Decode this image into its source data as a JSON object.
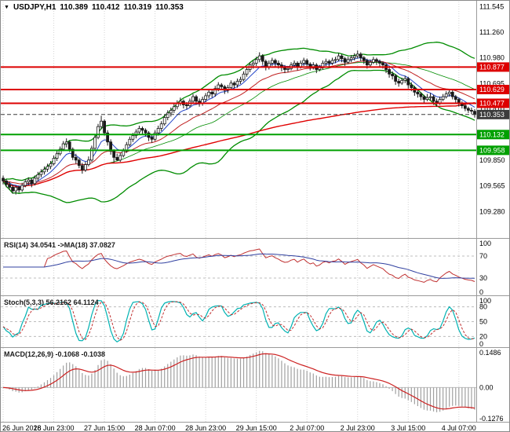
{
  "header": {
    "symbol_label": "USDJPY,H1",
    "open": "110.389",
    "high": "110.412",
    "low": "110.319",
    "close": "110.353"
  },
  "colors": {
    "background": "#ffffff",
    "border": "#9a9a9a",
    "grid": "#d4d4d4",
    "text": "#000000",
    "candle_up_fill": "#ffffff",
    "candle_down_fill": "#1a1a1a",
    "candle_outline": "#1a1a1a",
    "bollinger": "#008c00",
    "sma_slow": "#e00000",
    "ema_fast": "#2244c8",
    "ema_mid": "#c02020",
    "resistance": "#dd0000",
    "support": "#00a000",
    "current_price_box": "#3c3c3c",
    "rsi_line": "#c03030",
    "rsi_ma": "#3040a0",
    "stoch_k": "#00b2b2",
    "stoch_d": "#c03030",
    "macd_hist": "#a0a0a0",
    "macd_signal": "#cc2020",
    "level_dashed": "#bcbcbc"
  },
  "chart_data": {
    "type": "candlestick",
    "symbol": "USDJPY",
    "timeframe": "H1",
    "title": "USDJPY,H1 110.389 110.412 110.319 110.353",
    "price_axis": {
      "min": 108.99,
      "max": 111.6,
      "ticks": [
        "111.545",
        "111.260",
        "110.980",
        "110.695",
        "110.410",
        "110.125",
        "109.850",
        "109.565",
        "109.280"
      ]
    },
    "time_labels": [
      "26 Jun 2018",
      "26 Jun 23:00",
      "27 Jun 15:00",
      "28 Jun 07:00",
      "28 Jun 23:00",
      "29 Jun 15:00",
      "2 Jul 07:00",
      "2 Jul 23:00",
      "3 Jul 15:00",
      "4 Jul 07:00"
    ],
    "bars_per_grid": 16,
    "levels": [
      {
        "price": 110.877,
        "kind": "resistance"
      },
      {
        "price": 110.629,
        "kind": "resistance"
      },
      {
        "price": 110.477,
        "kind": "resistance"
      },
      {
        "price": 110.132,
        "kind": "support"
      },
      {
        "price": 109.958,
        "kind": "support"
      }
    ],
    "current_price": 110.353,
    "overlays": {
      "bollinger_period": 34,
      "bollinger_dev": 2,
      "ema_fast": 8,
      "ema_mid": 21,
      "sma_slow": 144
    },
    "candles": [
      [
        109.65,
        109.68,
        109.58,
        109.62
      ],
      [
        109.62,
        109.64,
        109.55,
        109.58
      ],
      [
        109.58,
        109.61,
        109.52,
        109.55
      ],
      [
        109.55,
        109.58,
        109.48,
        109.51
      ],
      [
        109.51,
        109.57,
        109.47,
        109.55
      ],
      [
        109.55,
        109.57,
        109.49,
        109.52
      ],
      [
        109.52,
        109.6,
        109.5,
        109.57
      ],
      [
        109.57,
        109.64,
        109.55,
        109.61
      ],
      [
        109.61,
        109.66,
        109.57,
        109.63
      ],
      [
        109.63,
        109.65,
        109.55,
        109.59
      ],
      [
        109.59,
        109.68,
        109.57,
        109.65
      ],
      [
        109.65,
        109.72,
        109.62,
        109.69
      ],
      [
        109.69,
        109.75,
        109.66,
        109.72
      ],
      [
        109.72,
        109.78,
        109.69,
        109.75
      ],
      [
        109.75,
        109.81,
        109.72,
        109.78
      ],
      [
        109.78,
        109.84,
        109.75,
        109.81
      ],
      [
        109.81,
        109.9,
        109.79,
        109.87
      ],
      [
        109.87,
        109.95,
        109.84,
        109.92
      ],
      [
        109.92,
        110.0,
        109.9,
        109.97
      ],
      [
        109.97,
        110.06,
        109.95,
        110.03
      ],
      [
        110.03,
        110.09,
        109.99,
        110.05
      ],
      [
        110.05,
        110.07,
        109.94,
        109.97
      ],
      [
        109.97,
        109.99,
        109.85,
        109.88
      ],
      [
        109.88,
        109.92,
        109.81,
        109.85
      ],
      [
        109.85,
        109.87,
        109.76,
        109.79
      ],
      [
        109.79,
        109.82,
        109.7,
        109.74
      ],
      [
        109.74,
        109.83,
        109.72,
        109.8
      ],
      [
        109.8,
        109.89,
        109.78,
        109.85
      ],
      [
        109.85,
        110.01,
        109.83,
        109.98
      ],
      [
        109.98,
        110.13,
        109.96,
        110.1
      ],
      [
        110.1,
        110.25,
        110.08,
        110.22
      ],
      [
        110.22,
        110.34,
        110.19,
        110.28
      ],
      [
        110.28,
        110.3,
        110.12,
        110.15
      ],
      [
        110.15,
        110.18,
        110.01,
        110.05
      ],
      [
        110.05,
        110.08,
        109.91,
        109.95
      ],
      [
        109.95,
        109.97,
        109.82,
        109.88
      ],
      [
        109.88,
        109.92,
        109.84,
        109.85
      ],
      [
        109.85,
        109.93,
        109.83,
        109.9
      ],
      [
        109.9,
        109.98,
        109.88,
        109.95
      ],
      [
        109.95,
        110.05,
        109.93,
        110.02
      ],
      [
        110.02,
        110.11,
        110.0,
        110.08
      ],
      [
        110.08,
        110.15,
        110.05,
        110.12
      ],
      [
        110.12,
        110.19,
        110.09,
        110.16
      ],
      [
        110.16,
        110.23,
        110.13,
        110.2
      ],
      [
        110.2,
        110.22,
        110.13,
        110.18
      ],
      [
        110.18,
        110.2,
        110.11,
        110.15
      ],
      [
        110.15,
        110.17,
        110.06,
        110.1
      ],
      [
        110.1,
        110.13,
        110.04,
        110.08
      ],
      [
        110.08,
        110.18,
        110.06,
        110.15
      ],
      [
        110.15,
        110.23,
        110.12,
        110.2
      ],
      [
        110.2,
        110.28,
        110.17,
        110.25
      ],
      [
        110.25,
        110.35,
        110.23,
        110.32
      ],
      [
        110.32,
        110.4,
        110.29,
        110.37
      ],
      [
        110.37,
        110.43,
        110.33,
        110.4
      ],
      [
        110.4,
        110.47,
        110.37,
        110.44
      ],
      [
        110.44,
        110.51,
        110.41,
        110.48
      ],
      [
        110.48,
        110.54,
        110.45,
        110.5
      ],
      [
        110.5,
        110.52,
        110.42,
        110.46
      ],
      [
        110.46,
        110.49,
        110.41,
        110.45
      ],
      [
        110.45,
        110.53,
        110.43,
        110.5
      ],
      [
        110.5,
        110.58,
        110.47,
        110.55
      ],
      [
        110.55,
        110.57,
        110.46,
        110.5
      ],
      [
        110.5,
        110.53,
        110.44,
        110.48
      ],
      [
        110.48,
        110.55,
        110.45,
        110.52
      ],
      [
        110.52,
        110.59,
        110.49,
        110.56
      ],
      [
        110.56,
        110.63,
        110.53,
        110.6
      ],
      [
        110.6,
        110.62,
        110.54,
        110.58
      ],
      [
        110.58,
        110.67,
        110.55,
        110.64
      ],
      [
        110.64,
        110.71,
        110.61,
        110.68
      ],
      [
        110.68,
        110.7,
        110.62,
        110.66
      ],
      [
        110.66,
        110.68,
        110.58,
        110.62
      ],
      [
        110.62,
        110.68,
        110.59,
        110.65
      ],
      [
        110.65,
        110.73,
        110.62,
        110.7
      ],
      [
        110.7,
        110.72,
        110.64,
        110.68
      ],
      [
        110.68,
        110.75,
        110.65,
        110.72
      ],
      [
        110.72,
        110.77,
        110.69,
        110.74
      ],
      [
        110.74,
        110.83,
        110.72,
        110.8
      ],
      [
        110.8,
        110.88,
        110.77,
        110.85
      ],
      [
        110.85,
        110.93,
        110.82,
        110.9
      ],
      [
        110.9,
        110.95,
        110.86,
        110.92
      ],
      [
        110.92,
        110.99,
        110.89,
        110.96
      ],
      [
        110.96,
        111.04,
        110.93,
        111.0
      ],
      [
        111.0,
        111.02,
        110.9,
        110.94
      ],
      [
        110.94,
        110.96,
        110.84,
        110.88
      ],
      [
        110.88,
        110.95,
        110.85,
        110.92
      ],
      [
        110.92,
        110.98,
        110.89,
        110.95
      ],
      [
        110.95,
        110.97,
        110.88,
        110.92
      ],
      [
        110.92,
        110.95,
        110.86,
        110.9
      ],
      [
        110.9,
        110.93,
        110.83,
        110.87
      ],
      [
        110.87,
        110.9,
        110.81,
        110.85
      ],
      [
        110.85,
        110.89,
        110.82,
        110.86
      ],
      [
        110.86,
        110.93,
        110.84,
        110.9
      ],
      [
        110.9,
        110.95,
        110.87,
        110.92
      ],
      [
        110.92,
        110.94,
        110.84,
        110.88
      ],
      [
        110.88,
        110.95,
        110.86,
        110.92
      ],
      [
        110.92,
        110.98,
        110.89,
        110.95
      ],
      [
        110.95,
        110.97,
        110.87,
        110.91
      ],
      [
        110.91,
        110.93,
        110.84,
        110.88
      ],
      [
        110.88,
        110.93,
        110.85,
        110.9
      ],
      [
        110.9,
        110.92,
        110.81,
        110.85
      ],
      [
        110.85,
        110.9,
        110.83,
        110.87
      ],
      [
        110.87,
        110.95,
        110.85,
        110.92
      ],
      [
        110.92,
        110.97,
        110.89,
        110.94
      ],
      [
        110.94,
        110.96,
        110.88,
        110.92
      ],
      [
        110.92,
        110.98,
        110.9,
        110.95
      ],
      [
        110.95,
        110.99,
        110.92,
        110.96
      ],
      [
        110.96,
        111.03,
        110.94,
        111.0
      ],
      [
        111.0,
        111.02,
        110.93,
        110.97
      ],
      [
        110.97,
        110.99,
        110.89,
        110.93
      ],
      [
        110.93,
        110.99,
        110.91,
        110.96
      ],
      [
        110.96,
        111.01,
        110.93,
        110.98
      ],
      [
        110.98,
        111.03,
        110.95,
        111.0
      ],
      [
        111.0,
        111.06,
        110.97,
        111.02
      ],
      [
        111.02,
        111.04,
        110.94,
        110.98
      ],
      [
        110.98,
        111.0,
        110.91,
        110.95
      ],
      [
        110.95,
        110.97,
        110.86,
        110.9
      ],
      [
        110.9,
        110.96,
        110.88,
        110.93
      ],
      [
        110.93,
        110.99,
        110.91,
        110.96
      ],
      [
        110.96,
        110.98,
        110.9,
        110.94
      ],
      [
        110.94,
        110.96,
        110.88,
        110.92
      ],
      [
        110.92,
        110.94,
        110.86,
        110.9
      ],
      [
        110.9,
        110.92,
        110.81,
        110.85
      ],
      [
        110.85,
        110.87,
        110.76,
        110.8
      ],
      [
        110.8,
        110.83,
        110.74,
        110.78
      ],
      [
        110.78,
        110.8,
        110.68,
        110.72
      ],
      [
        110.72,
        110.75,
        110.66,
        110.7
      ],
      [
        110.7,
        110.76,
        110.68,
        110.73
      ],
      [
        110.73,
        110.78,
        110.7,
        110.75
      ],
      [
        110.75,
        110.77,
        110.64,
        110.68
      ],
      [
        110.68,
        110.71,
        110.61,
        110.65
      ],
      [
        110.65,
        110.67,
        110.56,
        110.6
      ],
      [
        110.6,
        110.63,
        110.54,
        110.58
      ],
      [
        110.58,
        110.6,
        110.51,
        110.55
      ],
      [
        110.55,
        110.57,
        110.48,
        110.52
      ],
      [
        110.52,
        110.58,
        110.5,
        110.54
      ],
      [
        110.54,
        110.59,
        110.51,
        110.55
      ],
      [
        110.55,
        110.57,
        110.46,
        110.5
      ],
      [
        110.5,
        110.53,
        110.44,
        110.48
      ],
      [
        110.48,
        110.55,
        110.46,
        110.52
      ],
      [
        110.52,
        110.58,
        110.5,
        110.55
      ],
      [
        110.55,
        110.61,
        110.53,
        110.58
      ],
      [
        110.58,
        110.63,
        110.55,
        110.6
      ],
      [
        110.6,
        110.62,
        110.52,
        110.55
      ],
      [
        110.55,
        110.57,
        110.48,
        110.52
      ],
      [
        110.52,
        110.54,
        110.44,
        110.48
      ],
      [
        110.48,
        110.5,
        110.42,
        110.45
      ],
      [
        110.45,
        110.47,
        110.39,
        110.42
      ],
      [
        110.42,
        110.44,
        110.37,
        110.4
      ],
      [
        110.4,
        110.43,
        110.36,
        110.39
      ],
      [
        110.389,
        110.412,
        110.319,
        110.353
      ]
    ],
    "indicators": {
      "rsi": {
        "label": "RSI(14) 34.0541 ->MA(18) 37.0827",
        "period": 14,
        "ma_period": 18,
        "range": [
          0,
          100
        ],
        "ticks": [
          "100",
          "70",
          "30",
          "0"
        ],
        "guides": [
          70,
          30
        ],
        "current": 34.0541,
        "current_ma": 37.0827
      },
      "stoch": {
        "label": "Stoch(5,3,3) 56.2162 64.1124",
        "k_period": 5,
        "slowing": 3,
        "d_period": 3,
        "range": [
          0,
          100
        ],
        "ticks": [
          "100",
          "80",
          "50",
          "20",
          "0"
        ],
        "guides": [
          80,
          50,
          20
        ],
        "current_k": 56.2162,
        "current_d": 64.1124
      },
      "macd": {
        "label": "MACD(12,26,9) -0.1068 -0.1038",
        "fast": 12,
        "slow": 26,
        "signal": 9,
        "range": [
          -0.138,
          0.16
        ],
        "ticks": [
          "0.1486",
          "0.00",
          "-0.1276"
        ],
        "current": -0.1068,
        "current_signal": -0.1038
      }
    }
  }
}
